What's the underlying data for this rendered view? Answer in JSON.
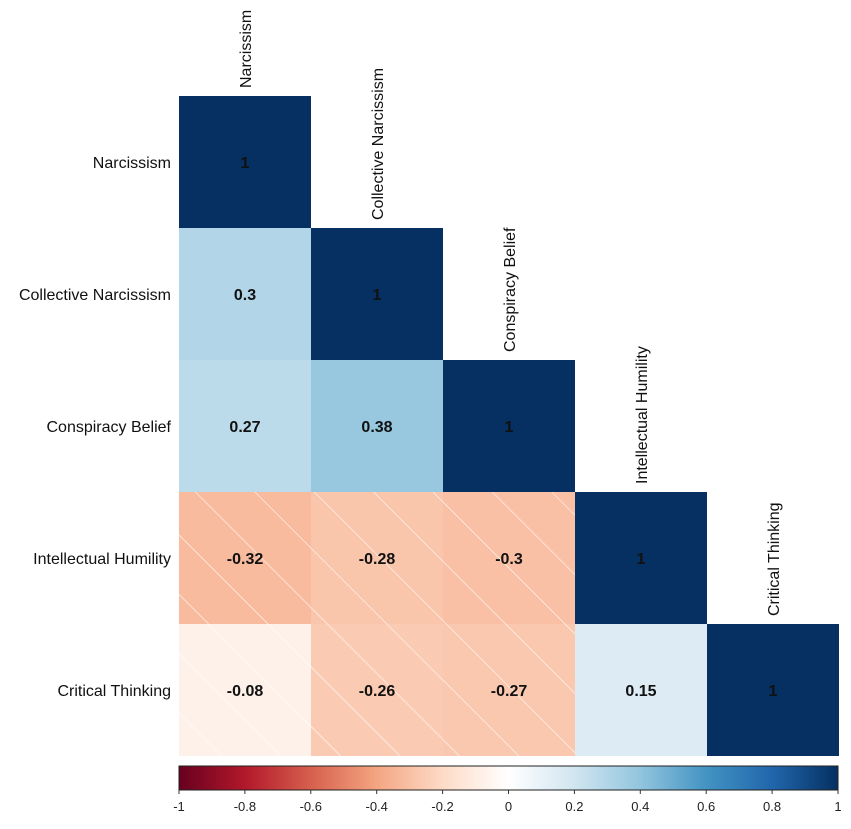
{
  "chart_data": {
    "type": "heatmap",
    "variables": [
      "Narcissism",
      "Collective Narcissism",
      "Conspiracy Belief",
      "Intellectual Humility",
      "Critical Thinking"
    ],
    "matrix": [
      [
        1,
        null,
        null,
        null,
        null
      ],
      [
        0.3,
        1,
        null,
        null,
        null
      ],
      [
        0.27,
        0.38,
        1,
        null,
        null
      ],
      [
        -0.32,
        -0.28,
        -0.3,
        1,
        null
      ],
      [
        -0.08,
        -0.26,
        -0.27,
        0.15,
        1
      ]
    ],
    "cell_labels": [
      [
        "1",
        null,
        null,
        null,
        null
      ],
      [
        "0.3",
        "1",
        null,
        null,
        null
      ],
      [
        "0.27",
        "0.38",
        "1",
        null,
        null
      ],
      [
        "-0.32",
        "-0.28",
        "-0.3",
        "1",
        null
      ],
      [
        "-0.08",
        "-0.26",
        "-0.27",
        "0.15",
        "1"
      ]
    ],
    "layout": "lower-triangle",
    "hatched_cells": "negative correlations",
    "colorbar": {
      "range": [
        -1,
        1
      ],
      "ticks": [
        -1,
        -0.8,
        -0.6,
        -0.4,
        -0.2,
        0,
        0.2,
        0.4,
        0.6,
        0.8,
        1
      ],
      "tick_labels": [
        "-1",
        "-0.8",
        "-0.6",
        "-0.4",
        "-0.2",
        "0",
        "0.2",
        "0.4",
        "0.6",
        "0.8",
        "1"
      ],
      "placement": "bottom"
    },
    "palette": [
      "#67001F",
      "#B2182B",
      "#D6604D",
      "#F4A582",
      "#FDDBC7",
      "#FFFFFF",
      "#D1E5F0",
      "#92C5DE",
      "#4393C3",
      "#2166AC",
      "#053061"
    ],
    "title": "",
    "xlabel": "",
    "ylabel": ""
  }
}
